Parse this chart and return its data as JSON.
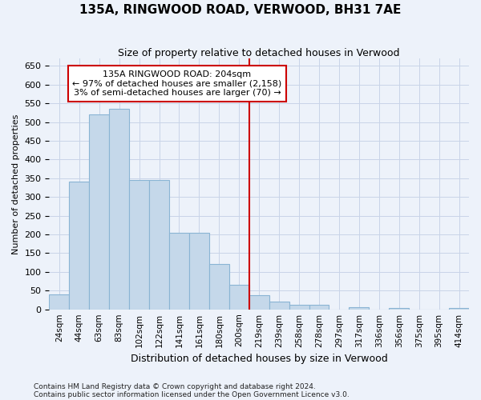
{
  "title": "135A, RINGWOOD ROAD, VERWOOD, BH31 7AE",
  "subtitle": "Size of property relative to detached houses in Verwood",
  "xlabel": "Distribution of detached houses by size in Verwood",
  "ylabel": "Number of detached properties",
  "footnote1": "Contains HM Land Registry data © Crown copyright and database right 2024.",
  "footnote2": "Contains public sector information licensed under the Open Government Licence v3.0.",
  "bin_labels": [
    "24sqm",
    "44sqm",
    "63sqm",
    "83sqm",
    "102sqm",
    "122sqm",
    "141sqm",
    "161sqm",
    "180sqm",
    "200sqm",
    "219sqm",
    "239sqm",
    "258sqm",
    "278sqm",
    "297sqm",
    "317sqm",
    "336sqm",
    "356sqm",
    "375sqm",
    "395sqm",
    "414sqm"
  ],
  "bar_values": [
    40,
    340,
    520,
    535,
    345,
    345,
    205,
    205,
    120,
    65,
    38,
    20,
    13,
    12,
    0,
    5,
    0,
    3,
    0,
    0,
    3
  ],
  "bar_color": "#c5d8ea",
  "bar_edge_color": "#8ab4d4",
  "grid_color": "#c8d4e8",
  "vline_color": "#cc0000",
  "annotation_text": "135A RINGWOOD ROAD: 204sqm\n← 97% of detached houses are smaller (2,158)\n3% of semi-detached houses are larger (70) →",
  "annotation_box_color": "#ffffff",
  "annotation_box_edge": "#cc0000",
  "ylim": [
    0,
    670
  ],
  "yticks": [
    0,
    50,
    100,
    150,
    200,
    250,
    300,
    350,
    400,
    450,
    500,
    550,
    600,
    650
  ],
  "background_color": "#edf2fa",
  "title_fontsize": 11,
  "subtitle_fontsize": 9,
  "ylabel_fontsize": 8,
  "xlabel_fontsize": 9
}
